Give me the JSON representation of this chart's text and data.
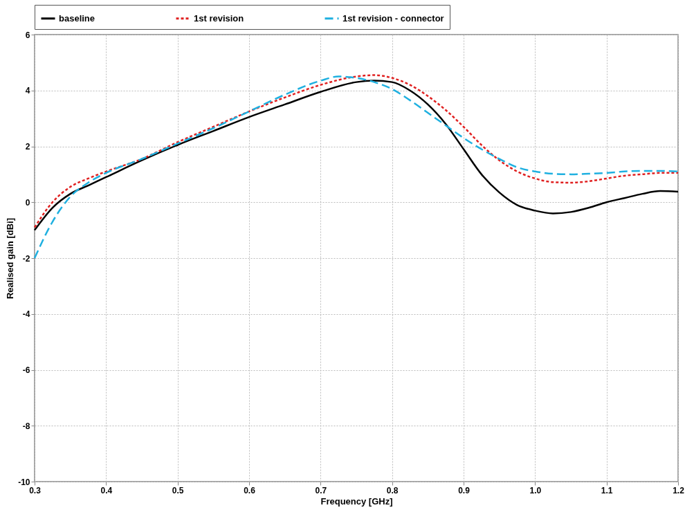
{
  "chart_data": {
    "type": "line",
    "xlabel": "Frequency [GHz]",
    "ylabel": "Realised gain [dBi]",
    "xlim": [
      0.3,
      1.2
    ],
    "ylim": [
      -10,
      6
    ],
    "xticks": [
      0.3,
      0.4,
      0.5,
      0.6,
      0.7,
      0.8,
      0.9,
      {
        "value": 1,
        "label": "1.0"
      },
      1.1,
      1.2
    ],
    "yticks": [
      -10,
      -8,
      -6,
      -4,
      -2,
      0,
      2,
      4,
      6
    ],
    "grid": true,
    "legend": "top",
    "series": [
      {
        "name": "baseline",
        "color": "#000000",
        "line_style": "solid",
        "x": [
          0.3,
          0.325,
          0.35,
          0.375,
          0.4,
          0.45,
          0.5,
          0.55,
          0.6,
          0.65,
          0.7,
          0.75,
          0.775,
          0.8,
          0.825,
          0.85,
          0.875,
          0.9,
          0.925,
          0.95,
          0.975,
          1.0,
          1.025,
          1.05,
          1.075,
          1.1,
          1.125,
          1.15,
          1.175,
          1.2
        ],
        "values": [
          -1.0,
          -0.2,
          0.3,
          0.6,
          0.9,
          1.5,
          2.05,
          2.55,
          3.05,
          3.5,
          3.95,
          4.3,
          4.35,
          4.3,
          4.0,
          3.5,
          2.8,
          1.9,
          1.0,
          0.35,
          -0.1,
          -0.3,
          -0.4,
          -0.35,
          -0.2,
          0.0,
          0.15,
          0.3,
          0.4,
          0.38
        ]
      },
      {
        "name": "1st revision",
        "color": "#e02020",
        "line_style": "dotted",
        "x": [
          0.3,
          0.325,
          0.35,
          0.375,
          0.4,
          0.45,
          0.5,
          0.55,
          0.6,
          0.65,
          0.7,
          0.75,
          0.775,
          0.8,
          0.825,
          0.85,
          0.875,
          0.9,
          0.925,
          0.95,
          0.975,
          1.0,
          1.025,
          1.05,
          1.075,
          1.1,
          1.125,
          1.15,
          1.175,
          1.2
        ],
        "values": [
          -0.9,
          0.0,
          0.55,
          0.85,
          1.1,
          1.55,
          2.15,
          2.7,
          3.25,
          3.75,
          4.2,
          4.5,
          4.55,
          4.45,
          4.2,
          3.8,
          3.3,
          2.7,
          2.05,
          1.5,
          1.1,
          0.85,
          0.72,
          0.7,
          0.75,
          0.85,
          0.95,
          1.0,
          1.05,
          1.05
        ]
      },
      {
        "name": "1st revision - connector",
        "color": "#1fb0e0",
        "line_style": "dashed",
        "x": [
          0.3,
          0.325,
          0.35,
          0.375,
          0.4,
          0.45,
          0.5,
          0.55,
          0.6,
          0.65,
          0.7,
          0.725,
          0.75,
          0.775,
          0.8,
          0.825,
          0.85,
          0.875,
          0.9,
          0.925,
          0.95,
          0.975,
          1.0,
          1.025,
          1.05,
          1.075,
          1.1,
          1.125,
          1.15,
          1.175,
          1.2
        ],
        "values": [
          -2.0,
          -0.7,
          0.2,
          0.7,
          1.05,
          1.55,
          2.1,
          2.65,
          3.25,
          3.85,
          4.35,
          4.5,
          4.45,
          4.3,
          4.05,
          3.65,
          3.2,
          2.75,
          2.3,
          1.9,
          1.55,
          1.25,
          1.1,
          1.02,
          1.0,
          1.02,
          1.05,
          1.1,
          1.12,
          1.12,
          1.1
        ]
      }
    ]
  }
}
